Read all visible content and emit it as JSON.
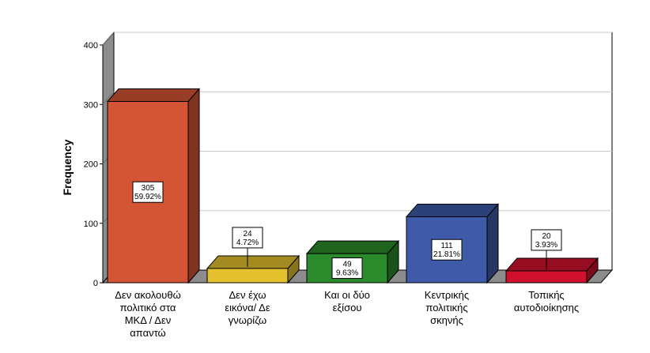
{
  "chart_data": {
    "type": "bar",
    "ylabel": "Frequency",
    "ylim": [
      0,
      400
    ],
    "yticks": [
      0,
      100,
      200,
      300,
      400
    ],
    "grid": true,
    "three_d": true,
    "categories": [
      [
        "Δεν ακολουθώ",
        "πολιτικό στα",
        "ΜΚΔ / Δεν",
        "απαντώ"
      ],
      [
        "Δεν έχω",
        "εικόνα/ Δε",
        "γνωρίζω"
      ],
      [
        "Και οι δύο",
        "εξίσου"
      ],
      [
        "Κεντρικής",
        "πολιτικής",
        "σκηνής"
      ],
      [
        "Τοπικής",
        "αυτοδιοίκησης"
      ]
    ],
    "values": [
      305,
      24,
      49,
      111,
      20
    ],
    "labels": [
      [
        "305",
        "59.92%"
      ],
      [
        "24",
        "4.72%"
      ],
      [
        "49",
        "9.63%"
      ],
      [
        "111",
        "21.81%"
      ],
      [
        "20",
        "3.93%"
      ]
    ],
    "colors": [
      "#d35535",
      "#e3c12f",
      "#2b8a2b",
      "#3f5aa8",
      "#d1102e"
    ]
  }
}
